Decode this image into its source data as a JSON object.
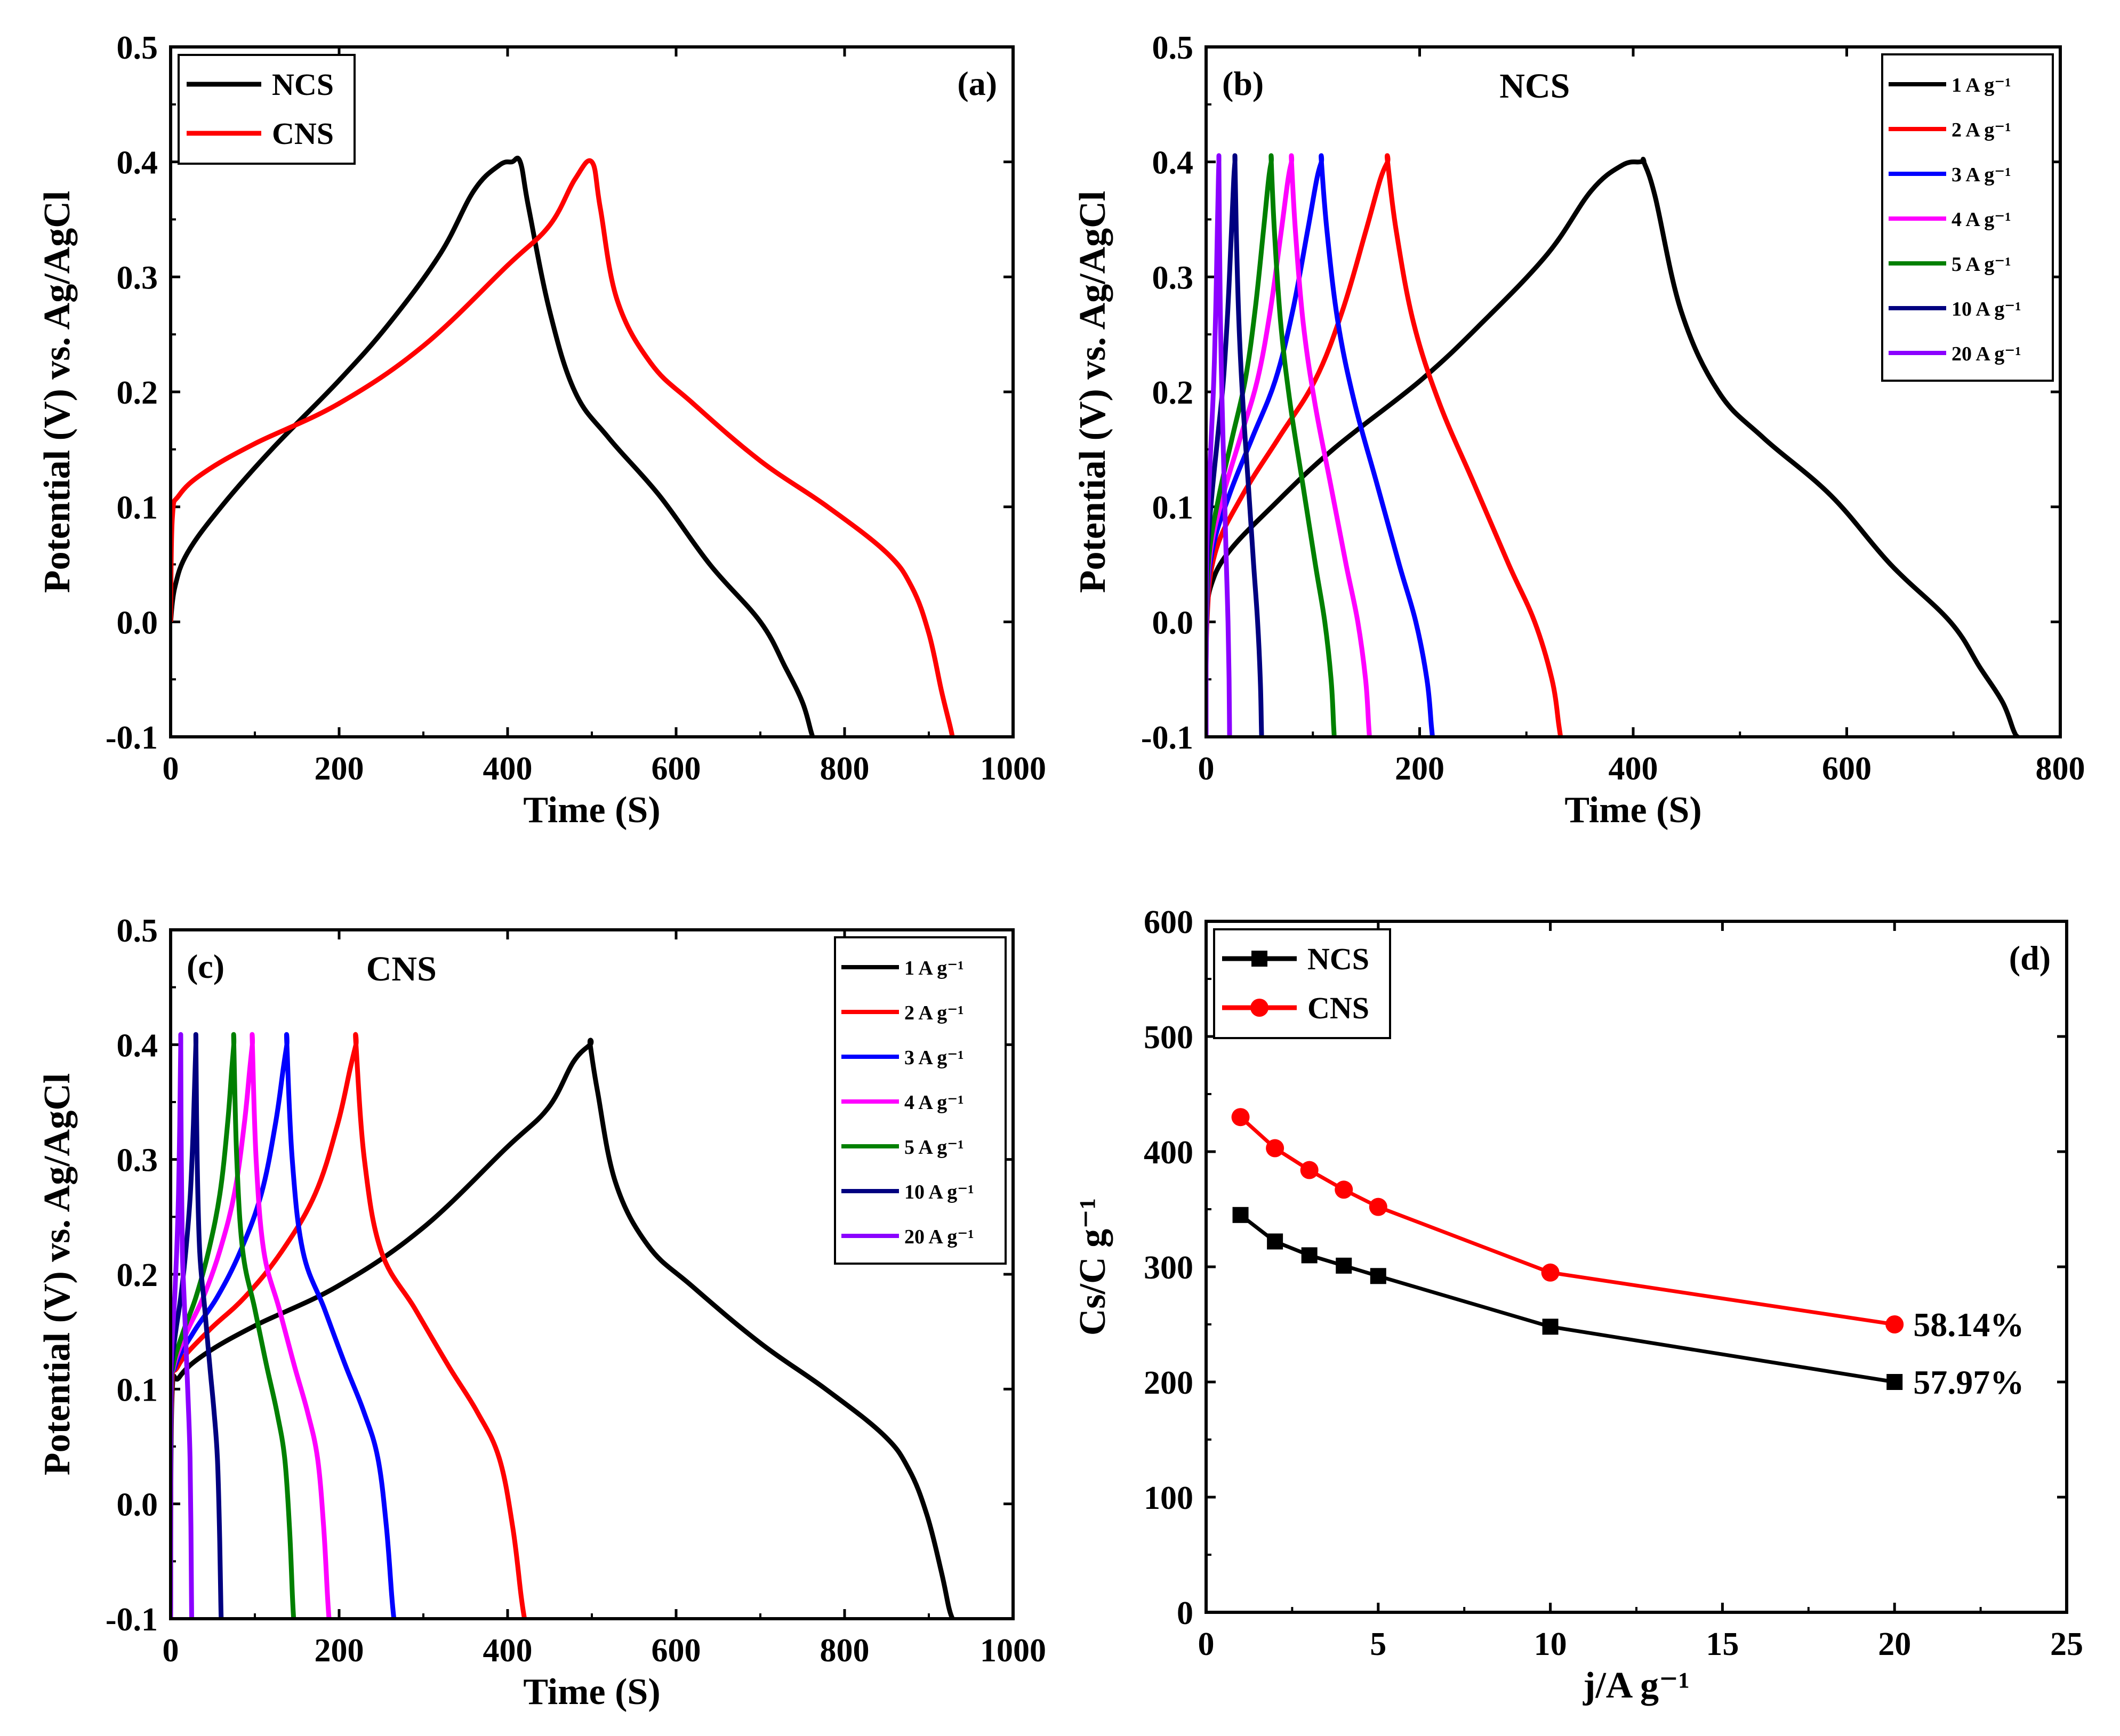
{
  "chart_data": [
    {
      "type": "line",
      "panel_label": "(a)",
      "inline_title": "",
      "xlabel": "Time (S)",
      "ylabel": "Potential (V) vs. Ag/AgCl",
      "xlim": [
        0,
        1000
      ],
      "ylim": [
        -0.1,
        0.5
      ],
      "xticks": [
        "0",
        "200",
        "400",
        "600",
        "800",
        "1000"
      ],
      "yticks": [
        "-0.1",
        "0.0",
        "0.1",
        "0.2",
        "0.3",
        "0.4",
        "0.5"
      ],
      "legend_position": "top-left",
      "legend_style": "large",
      "series": [
        {
          "name": "NCS",
          "color": "#000000",
          "x": [
            0,
            5,
            20,
            60,
            120,
            200,
            260,
            320,
            360,
            390,
            405,
            415,
            425,
            450,
            480,
            520,
            580,
            640,
            700,
            730,
            750,
            760,
            762
          ],
          "y": [
            0.0,
            0.03,
            0.06,
            0.1,
            0.15,
            0.21,
            0.26,
            0.32,
            0.375,
            0.397,
            0.4,
            0.4,
            0.36,
            0.27,
            0.2,
            0.16,
            0.11,
            0.05,
            0.0,
            -0.04,
            -0.07,
            -0.095,
            -0.1
          ]
        },
        {
          "name": "CNS",
          "color": "#ff0000",
          "x": [
            0,
            2,
            10,
            40,
            100,
            200,
            300,
            400,
            450,
            480,
            500,
            510,
            530,
            570,
            620,
            700,
            780,
            850,
            880,
            900,
            915,
            925,
            928
          ],
          "y": [
            0.0,
            0.09,
            0.11,
            0.13,
            0.155,
            0.19,
            0.24,
            0.31,
            0.345,
            0.385,
            0.4,
            0.36,
            0.28,
            0.225,
            0.19,
            0.14,
            0.1,
            0.06,
            0.03,
            -0.01,
            -0.06,
            -0.09,
            -0.1
          ]
        }
      ]
    },
    {
      "type": "line",
      "panel_label": "(b)",
      "inline_title": "NCS",
      "xlabel": "Time (S)",
      "ylabel": "Potential (V) vs. Ag/AgCl",
      "xlim": [
        0,
        800
      ],
      "ylim": [
        -0.1,
        0.5
      ],
      "xticks": [
        "0",
        "200",
        "400",
        "600",
        "800"
      ],
      "yticks": [
        "-0.1",
        "0.0",
        "0.1",
        "0.2",
        "0.3",
        "0.4",
        "0.5"
      ],
      "legend_position": "top-right",
      "legend_style": "small",
      "series": [
        {
          "name": "1 A g⁻¹",
          "color": "#000000",
          "tc": 410,
          "td": 760,
          "shape": "ncs_slow"
        },
        {
          "name": "2 A g⁻¹",
          "color": "#ff0000",
          "tc": 170,
          "td": 332,
          "shape": "ncs"
        },
        {
          "name": "3 A g⁻¹",
          "color": "#0000ff",
          "tc": 108,
          "td": 212,
          "shape": "ncs"
        },
        {
          "name": "4 A g⁻¹",
          "color": "#ff00ff",
          "tc": 80,
          "td": 153,
          "shape": "ncs"
        },
        {
          "name": "5 A g⁻¹",
          "color": "#008000",
          "tc": 61,
          "td": 120,
          "shape": "ncs"
        },
        {
          "name": "10 A g⁻¹",
          "color": "#000080",
          "tc": 27,
          "td": 52,
          "shape": "ncs"
        },
        {
          "name": "20 A g⁻¹",
          "color": "#8b00ff",
          "tc": 12,
          "td": 22,
          "shape": "ncs"
        }
      ]
    },
    {
      "type": "line",
      "panel_label": "(c)",
      "inline_title": "CNS",
      "xlabel": "Time (S)",
      "ylabel": "Potential (V) vs. Ag/AgCl",
      "xlim": [
        0,
        1000
      ],
      "ylim": [
        -0.1,
        0.5
      ],
      "xticks": [
        "0",
        "200",
        "400",
        "600",
        "800",
        "1000"
      ],
      "yticks": [
        "-0.1",
        "0.0",
        "0.1",
        "0.2",
        "0.3",
        "0.4",
        "0.5"
      ],
      "legend_position": "top-right",
      "legend_style": "small",
      "series": [
        {
          "name": "1 A g⁻¹",
          "color": "#000000",
          "tc": 498,
          "td": 928,
          "shape": "cns_slow"
        },
        {
          "name": "2 A g⁻¹",
          "color": "#ff0000",
          "tc": 220,
          "td": 420,
          "shape": "cns"
        },
        {
          "name": "3 A g⁻¹",
          "color": "#0000ff",
          "tc": 138,
          "td": 265,
          "shape": "cns"
        },
        {
          "name": "4 A g⁻¹",
          "color": "#ff00ff",
          "tc": 97,
          "td": 188,
          "shape": "cns"
        },
        {
          "name": "5 A g⁻¹",
          "color": "#008000",
          "tc": 75,
          "td": 146,
          "shape": "cns"
        },
        {
          "name": "10 A g⁻¹",
          "color": "#000080",
          "tc": 30,
          "td": 60,
          "shape": "cns"
        },
        {
          "name": "20 A g⁻¹",
          "color": "#8b00ff",
          "tc": 12,
          "td": 25,
          "shape": "cns"
        }
      ]
    },
    {
      "type": "line",
      "panel_label": "(d)",
      "inline_title": "",
      "xlabel": "j/A g⁻¹",
      "ylabel": "Cs/C g⁻¹",
      "xlim": [
        0,
        25
      ],
      "ylim": [
        0,
        600
      ],
      "xticks": [
        "0",
        "5",
        "10",
        "15",
        "20",
        "25"
      ],
      "yticks": [
        "0",
        "100",
        "200",
        "300",
        "400",
        "500",
        "600"
      ],
      "legend_position": "top-left",
      "legend_style": "large",
      "annotations": [
        {
          "text": "58.14%",
          "x": 20,
          "y": 250
        },
        {
          "text": "57.97%",
          "x": 20,
          "y": 200
        }
      ],
      "series": [
        {
          "name": "NCS",
          "color": "#000000",
          "marker": "square",
          "x": [
            1,
            2,
            3,
            4,
            5,
            10,
            20
          ],
          "y": [
            345,
            322,
            310,
            301,
            292,
            248,
            200
          ]
        },
        {
          "name": "CNS",
          "color": "#ff0000",
          "marker": "circle",
          "x": [
            1,
            2,
            3,
            4,
            5,
            10,
            20
          ],
          "y": [
            430,
            403,
            384,
            367,
            352,
            295,
            250
          ]
        }
      ]
    }
  ]
}
